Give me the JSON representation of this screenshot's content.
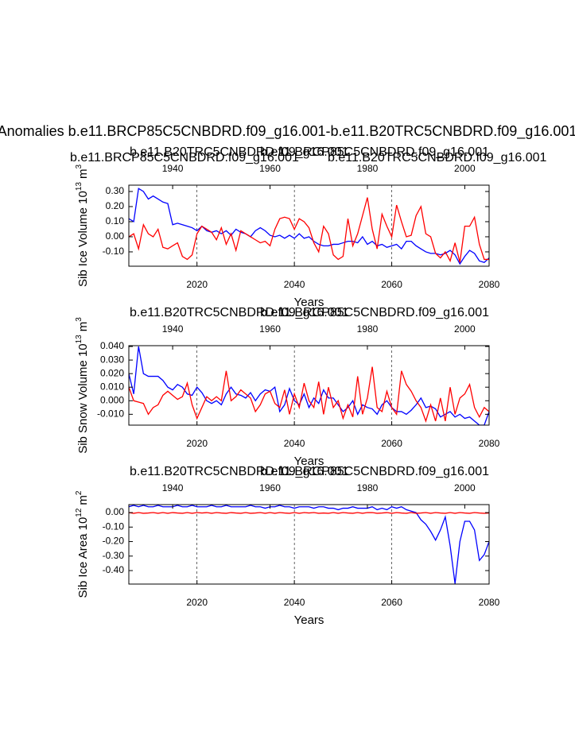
{
  "chart_data": [
    {
      "type": "line",
      "title": "Anomalies b.e11.BRCP85C5CNBDRD.f09_g16.001-b.e11.B20TRC5CNBDRD.f09_g16.001",
      "ylabel": [
        "Sib Ice Volume 10",
        "13",
        "m",
        "3"
      ],
      "xlabel": "Years",
      "xlim": [
        2006,
        2080
      ],
      "x2lim": [
        1931,
        2005
      ],
      "ylim": [
        -0.195,
        0.342
      ],
      "xticks": [
        2020,
        2040,
        2060,
        2080
      ],
      "x2ticks": [
        1940,
        1960,
        1980,
        2000
      ],
      "yticks": [
        {
          "value": -0.1,
          "label": "-0.10"
        },
        {
          "value": 0,
          "label": "0.00"
        },
        {
          "value": 0.1,
          "label": "0.10"
        },
        {
          "value": 0.2,
          "label": "0.20"
        },
        {
          "value": 0.3,
          "label": "0.30"
        }
      ],
      "grid": true,
      "x": [
        2006,
        2007,
        2008,
        2009,
        2010,
        2011,
        2012,
        2013,
        2014,
        2015,
        2016,
        2017,
        2018,
        2019,
        2020,
        2021,
        2022,
        2023,
        2024,
        2025,
        2026,
        2027,
        2028,
        2029,
        2030,
        2031,
        2032,
        2033,
        2034,
        2035,
        2036,
        2037,
        2038,
        2039,
        2040,
        2041,
        2042,
        2043,
        2044,
        2045,
        2046,
        2047,
        2048,
        2049,
        2050,
        2051,
        2052,
        2053,
        2054,
        2055,
        2056,
        2057,
        2058,
        2059,
        2060,
        2061,
        2062,
        2063,
        2064,
        2065,
        2066,
        2067,
        2068,
        2069,
        2070,
        2071,
        2072,
        2073,
        2074,
        2075,
        2076,
        2077,
        2078,
        2079,
        2080
      ],
      "x2": [
        1931,
        1932,
        1933,
        1934,
        1935,
        1936,
        1937,
        1938,
        1939,
        1940,
        1941,
        1942,
        1943,
        1944,
        1945,
        1946,
        1947,
        1948,
        1949,
        1950,
        1951,
        1952,
        1953,
        1954,
        1955,
        1956,
        1957,
        1958,
        1959,
        1960,
        1961,
        1962,
        1963,
        1964,
        1965,
        1966,
        1967,
        1968,
        1969,
        1970,
        1971,
        1972,
        1973,
        1974,
        1975,
        1976,
        1977,
        1978,
        1979,
        1980,
        1981,
        1982,
        1983,
        1984,
        1985,
        1986,
        1987,
        1988,
        1989,
        1990,
        1991,
        1992,
        1993,
        1994,
        1995,
        1996,
        1997,
        1998,
        1999,
        2000,
        2001,
        2002,
        2003,
        2004,
        2005
      ],
      "series": [
        {
          "name": "b.e11.BRCP85C5CNBDRD.f09_g16.001",
          "color": "#0000ff",
          "axis": "x",
          "values": [
            0.12,
            0.1,
            0.32,
            0.3,
            0.25,
            0.27,
            0.25,
            0.23,
            0.22,
            0.08,
            0.09,
            0.08,
            0.07,
            0.06,
            0.04,
            0.07,
            0.04,
            0.03,
            0.04,
            0.02,
            0.04,
            0.01,
            0.05,
            0.03,
            0.02,
            0.0,
            0.04,
            0.06,
            0.04,
            0.01,
            0.0,
            0.01,
            -0.01,
            0.01,
            -0.01,
            0.02,
            -0.01,
            0.0,
            -0.03,
            -0.05,
            -0.06,
            -0.06,
            -0.05,
            -0.05,
            -0.04,
            -0.03,
            -0.03,
            -0.04,
            0.0,
            -0.05,
            -0.03,
            -0.06,
            -0.05,
            -0.07,
            -0.06,
            -0.05,
            -0.08,
            -0.03,
            -0.03,
            -0.06,
            -0.08,
            -0.1,
            -0.11,
            -0.11,
            -0.12,
            -0.11,
            -0.09,
            -0.12,
            -0.18,
            -0.13,
            -0.09,
            -0.11,
            -0.16,
            -0.17,
            -0.14
          ]
        },
        {
          "name": "b.e11.B20TRC5CNBDRD.f09_g16.001",
          "color": "#ff0000",
          "axis": "x2",
          "values": [
            0.0,
            0.02,
            -0.08,
            0.08,
            0.02,
            0.0,
            0.05,
            -0.07,
            -0.08,
            -0.06,
            -0.04,
            -0.13,
            -0.15,
            -0.12,
            0.02,
            0.07,
            0.05,
            0.03,
            -0.02,
            0.06,
            -0.05,
            0.02,
            -0.09,
            0.04,
            0.02,
            0.0,
            -0.02,
            -0.04,
            -0.03,
            -0.06,
            0.05,
            0.12,
            0.13,
            0.12,
            0.05,
            0.12,
            0.1,
            0.06,
            -0.04,
            -0.1,
            0.07,
            0.02,
            -0.12,
            -0.15,
            -0.13,
            0.12,
            -0.06,
            0.02,
            0.14,
            0.26,
            0.05,
            -0.08,
            0.15,
            0.07,
            0.0,
            0.21,
            0.1,
            0.0,
            0.01,
            0.14,
            0.2,
            0.02,
            0.0,
            -0.11,
            -0.14,
            -0.1,
            -0.16,
            -0.04,
            -0.17,
            0.07,
            0.07,
            0.13,
            -0.05,
            -0.15,
            -0.15
          ]
        }
      ]
    },
    {
      "type": "line",
      "ylabel": [
        "Sib Snow Volume 10",
        "13",
        "m",
        "3"
      ],
      "xlabel": "Years",
      "xlim": [
        2006,
        2080
      ],
      "x2lim": [
        1931,
        2005
      ],
      "ylim": [
        -0.018,
        0.0406
      ],
      "xticks": [
        2020,
        2040,
        2060,
        2080
      ],
      "x2ticks": [
        1940,
        1960,
        1980,
        2000
      ],
      "yticks": [
        {
          "value": -0.01,
          "label": "-0.010"
        },
        {
          "value": 0,
          "label": "0.000"
        },
        {
          "value": 0.01,
          "label": "0.010"
        },
        {
          "value": 0.02,
          "label": "0.020"
        },
        {
          "value": 0.03,
          "label": "0.030"
        },
        {
          "value": 0.04,
          "label": "0.040"
        }
      ],
      "grid": true,
      "x": [
        2006,
        2007,
        2008,
        2009,
        2010,
        2011,
        2012,
        2013,
        2014,
        2015,
        2016,
        2017,
        2018,
        2019,
        2020,
        2021,
        2022,
        2023,
        2024,
        2025,
        2026,
        2027,
        2028,
        2029,
        2030,
        2031,
        2032,
        2033,
        2034,
        2035,
        2036,
        2037,
        2038,
        2039,
        2040,
        2041,
        2042,
        2043,
        2044,
        2045,
        2046,
        2047,
        2048,
        2049,
        2050,
        2051,
        2052,
        2053,
        2054,
        2055,
        2056,
        2057,
        2058,
        2059,
        2060,
        2061,
        2062,
        2063,
        2064,
        2065,
        2066,
        2067,
        2068,
        2069,
        2070,
        2071,
        2072,
        2073,
        2074,
        2075,
        2076,
        2077,
        2078,
        2079,
        2080
      ],
      "x2": [
        1931,
        1932,
        1933,
        1934,
        1935,
        1936,
        1937,
        1938,
        1939,
        1940,
        1941,
        1942,
        1943,
        1944,
        1945,
        1946,
        1947,
        1948,
        1949,
        1950,
        1951,
        1952,
        1953,
        1954,
        1955,
        1956,
        1957,
        1958,
        1959,
        1960,
        1961,
        1962,
        1963,
        1964,
        1965,
        1966,
        1967,
        1968,
        1969,
        1970,
        1971,
        1972,
        1973,
        1974,
        1975,
        1976,
        1977,
        1978,
        1979,
        1980,
        1981,
        1982,
        1983,
        1984,
        1985,
        1986,
        1987,
        1988,
        1989,
        1990,
        1991,
        1992,
        1993,
        1994,
        1995,
        1996,
        1997,
        1998,
        1999,
        2000,
        2001,
        2002,
        2003,
        2004,
        2005
      ],
      "series": [
        {
          "name": "b.e11.BRCP85C5CNBDRD.f09_g16.001",
          "color": "#0000ff",
          "axis": "x",
          "values": [
            0.02,
            0.005,
            0.04,
            0.02,
            0.018,
            0.018,
            0.018,
            0.015,
            0.01,
            0.008,
            0.012,
            0.01,
            0.005,
            0.004,
            0.01,
            0.006,
            0.0,
            -0.002,
            0.0,
            -0.003,
            0.005,
            0.01,
            0.005,
            0.004,
            0.002,
            0.006,
            0.0,
            0.005,
            0.008,
            0.007,
            0.01,
            -0.008,
            -0.003,
            0.009,
            0.0,
            -0.003,
            0.005,
            -0.005,
            0.002,
            -0.002,
            0.008,
            0.002,
            0.002,
            -0.003,
            -0.008,
            -0.005,
            0.0,
            -0.01,
            -0.003,
            -0.005,
            -0.006,
            -0.01,
            -0.003,
            0.0,
            -0.005,
            -0.008,
            -0.008,
            -0.01,
            -0.007,
            -0.003,
            0.002,
            -0.005,
            -0.004,
            -0.006,
            -0.012,
            -0.01,
            -0.008,
            -0.012,
            -0.01,
            -0.013,
            -0.012,
            -0.015,
            -0.018,
            -0.018,
            -0.008
          ]
        },
        {
          "name": "b.e11.B20TRC5CNBDRD.f09_g16.001",
          "color": "#ff0000",
          "axis": "x2",
          "values": [
            0.01,
            0.0,
            -0.001,
            -0.002,
            -0.01,
            -0.005,
            -0.003,
            0.004,
            0.007,
            0.004,
            0.001,
            0.003,
            0.013,
            -0.003,
            -0.013,
            -0.005,
            0.003,
            0.0,
            0.003,
            0.0,
            0.022,
            0.0,
            0.003,
            0.008,
            0.005,
            0.002,
            -0.008,
            -0.003,
            0.005,
            0.007,
            -0.002,
            -0.005,
            0.008,
            -0.01,
            0.005,
            -0.005,
            0.013,
            0.0,
            -0.005,
            0.014,
            -0.01,
            0.01,
            -0.005,
            0.0,
            -0.013,
            -0.003,
            -0.012,
            0.018,
            -0.01,
            0.002,
            0.025,
            -0.005,
            -0.008,
            0.007,
            -0.005,
            -0.01,
            0.022,
            0.012,
            0.007,
            0.0,
            -0.005,
            -0.015,
            -0.003,
            -0.015,
            0.002,
            -0.015,
            0.01,
            -0.01,
            0.002,
            0.005,
            0.012,
            -0.005,
            -0.012,
            -0.005,
            -0.008
          ]
        }
      ]
    },
    {
      "type": "line",
      "ylabel": [
        "Sib Ice Area 10",
        "12",
        "m",
        "2"
      ],
      "xlabel": "Years",
      "xlim": [
        2006,
        2080
      ],
      "x2lim": [
        1931,
        2005
      ],
      "ylim": [
        -0.493,
        0.055
      ],
      "xticks": [
        2020,
        2040,
        2060,
        2080
      ],
      "x2ticks": [
        1940,
        1960,
        1980,
        2000
      ],
      "yticks": [
        {
          "value": -0.4,
          "label": "-0.40"
        },
        {
          "value": -0.3,
          "label": "-0.30"
        },
        {
          "value": -0.2,
          "label": "-0.20"
        },
        {
          "value": -0.1,
          "label": "-0.10"
        },
        {
          "value": 0,
          "label": "0.00"
        }
      ],
      "grid": true,
      "x": [
        2006,
        2007,
        2008,
        2009,
        2010,
        2011,
        2012,
        2013,
        2014,
        2015,
        2016,
        2017,
        2018,
        2019,
        2020,
        2021,
        2022,
        2023,
        2024,
        2025,
        2026,
        2027,
        2028,
        2029,
        2030,
        2031,
        2032,
        2033,
        2034,
        2035,
        2036,
        2037,
        2038,
        2039,
        2040,
        2041,
        2042,
        2043,
        2044,
        2045,
        2046,
        2047,
        2048,
        2049,
        2050,
        2051,
        2052,
        2053,
        2054,
        2055,
        2056,
        2057,
        2058,
        2059,
        2060,
        2061,
        2062,
        2063,
        2064,
        2065,
        2066,
        2067,
        2068,
        2069,
        2070,
        2071,
        2072,
        2073,
        2074,
        2075,
        2076,
        2077,
        2078,
        2079,
        2080
      ],
      "x2": [
        1931,
        1932,
        1933,
        1934,
        1935,
        1936,
        1937,
        1938,
        1939,
        1940,
        1941,
        1942,
        1943,
        1944,
        1945,
        1946,
        1947,
        1948,
        1949,
        1950,
        1951,
        1952,
        1953,
        1954,
        1955,
        1956,
        1957,
        1958,
        1959,
        1960,
        1961,
        1962,
        1963,
        1964,
        1965,
        1966,
        1967,
        1968,
        1969,
        1970,
        1971,
        1972,
        1973,
        1974,
        1975,
        1976,
        1977,
        1978,
        1979,
        1980,
        1981,
        1982,
        1983,
        1984,
        1985,
        1986,
        1987,
        1988,
        1989,
        1990,
        1991,
        1992,
        1993,
        1994,
        1995,
        1996,
        1997,
        1998,
        1999,
        2000,
        2001,
        2002,
        2003,
        2004,
        2005
      ],
      "series": [
        {
          "name": "b.e11.BRCP85C5CNBDRD.f09_g16.001",
          "color": "#0000ff",
          "axis": "x",
          "values": [
            0.04,
            0.05,
            0.04,
            0.05,
            0.04,
            0.04,
            0.05,
            0.04,
            0.04,
            0.04,
            0.05,
            0.04,
            0.04,
            0.05,
            0.04,
            0.04,
            0.04,
            0.05,
            0.04,
            0.04,
            0.05,
            0.04,
            0.04,
            0.04,
            0.04,
            0.05,
            0.04,
            0.04,
            0.03,
            0.04,
            0.04,
            0.05,
            0.04,
            0.04,
            0.03,
            0.04,
            0.04,
            0.04,
            0.03,
            0.04,
            0.04,
            0.03,
            0.03,
            0.02,
            0.03,
            0.03,
            0.04,
            0.03,
            0.03,
            0.03,
            0.04,
            0.02,
            0.03,
            0.02,
            0.04,
            0.03,
            0.04,
            0.02,
            0.01,
            0.0,
            -0.05,
            -0.08,
            -0.13,
            -0.19,
            -0.12,
            -0.03,
            -0.23,
            -0.49,
            -0.2,
            -0.06,
            -0.06,
            -0.12,
            -0.33,
            -0.29,
            -0.2
          ]
        },
        {
          "name": "b.e11.B20TRC5CNBDRD.f09_g16.001",
          "color": "#ff0000",
          "axis": "x2",
          "values": [
            0.0,
            -0.005,
            0.0,
            -0.005,
            -0.003,
            0.0,
            -0.005,
            0.0,
            -0.005,
            0.0,
            -0.003,
            -0.005,
            0.0,
            -0.005,
            0.0,
            -0.003,
            0.0,
            -0.005,
            0.0,
            -0.003,
            -0.005,
            0.0,
            -0.003,
            -0.005,
            0.0,
            -0.005,
            -0.003,
            0.0,
            -0.005,
            0.0,
            -0.005,
            0.0,
            -0.003,
            -0.005,
            0.0,
            -0.005,
            0.0,
            -0.003,
            0.0,
            -0.005,
            -0.003,
            -0.005,
            0.0,
            -0.005,
            0.0,
            -0.003,
            -0.005,
            0.0,
            -0.005,
            0.0,
            0.0,
            -0.005,
            -0.003,
            0.0,
            -0.005,
            0.0,
            -0.003,
            -0.005,
            0.0,
            -0.005,
            -0.003,
            0.0,
            -0.005,
            0.0,
            -0.003,
            -0.005,
            0.0,
            -0.005,
            0.0,
            -0.003,
            -0.005,
            0.0,
            -0.003,
            -0.005,
            -0.003
          ]
        }
      ]
    }
  ]
}
